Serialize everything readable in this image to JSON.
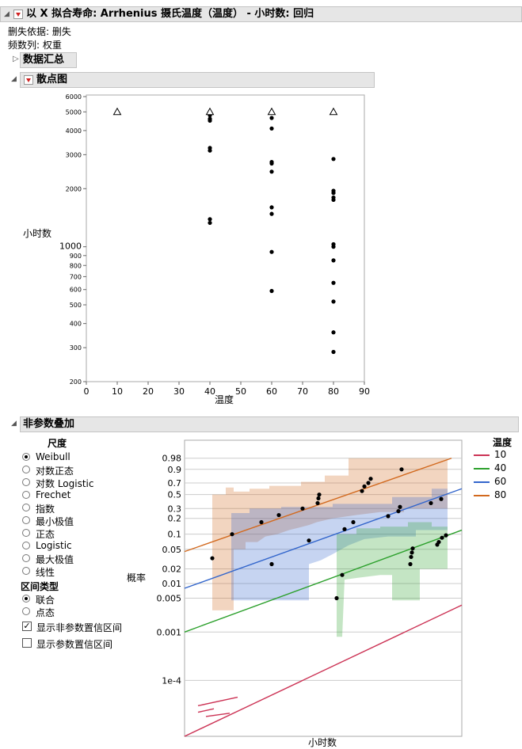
{
  "report": {
    "title": "以 X 拟合寿命: Arrhenius 摄氏温度（温度） - 小时数: 回归",
    "censor_label": "删失依据: 删失",
    "freq_label": "频数列: 权重"
  },
  "sections": {
    "summary_title": "数据汇总",
    "scatter_title": "散点图",
    "overlay_title": "非参数叠加"
  },
  "scale": {
    "heading": "尺度",
    "options": [
      "Weibull",
      "对数正态",
      "对数 Logistic",
      "Frechet",
      "指数",
      "最小极值",
      "正态",
      "Logistic",
      "最大极值",
      "线性"
    ],
    "selected": "Weibull"
  },
  "interval": {
    "heading": "区间类型",
    "options": [
      "联合",
      "点态"
    ],
    "selected": "联合"
  },
  "checkboxes": {
    "nonparam": {
      "label": "显示非参数置信区间",
      "checked": true
    },
    "param": {
      "label": "显示参数置信区间",
      "checked": false
    }
  },
  "legend": {
    "title": "温度",
    "items": [
      {
        "label": "10",
        "color": "#cc3355"
      },
      {
        "label": "40",
        "color": "#2ca02c"
      },
      {
        "label": "60",
        "color": "#3366cc"
      },
      {
        "label": "80",
        "color": "#d2691e"
      }
    ]
  },
  "chart_data": [
    {
      "type": "scatter",
      "xlabel": "温度",
      "ylabel": "小时数",
      "xlim": [
        0,
        90
      ],
      "x_ticks": [
        "0",
        "10",
        "20",
        "30",
        "40",
        "50",
        "60",
        "70",
        "80",
        "90"
      ],
      "y_log": true,
      "ylim": [
        200,
        6000
      ],
      "y_ticks": [
        "200",
        "300",
        "400",
        "500",
        "600",
        "700",
        "800",
        "900",
        "1000",
        "2000",
        "3000",
        "4000",
        "5000",
        "6000"
      ],
      "censored_points": [
        [
          10,
          5000
        ],
        [
          40,
          5000
        ],
        [
          60,
          5000
        ],
        [
          80,
          5000
        ]
      ],
      "points": [
        [
          40,
          4980
        ],
        [
          40,
          4900
        ],
        [
          40,
          4800
        ],
        [
          40,
          4600
        ],
        [
          40,
          4500
        ],
        [
          40,
          3250
        ],
        [
          40,
          3150
        ],
        [
          40,
          1390
        ],
        [
          40,
          1330
        ],
        [
          60,
          4650
        ],
        [
          60,
          4100
        ],
        [
          60,
          2750
        ],
        [
          60,
          2700
        ],
        [
          60,
          2450
        ],
        [
          60,
          1600
        ],
        [
          60,
          1480
        ],
        [
          60,
          940
        ],
        [
          60,
          590
        ],
        [
          80,
          2850
        ],
        [
          80,
          1950
        ],
        [
          80,
          1900
        ],
        [
          80,
          1800
        ],
        [
          80,
          1750
        ],
        [
          80,
          1030
        ],
        [
          80,
          1000
        ],
        [
          80,
          850
        ],
        [
          80,
          650
        ],
        [
          80,
          520
        ],
        [
          80,
          360
        ],
        [
          80,
          285
        ]
      ]
    },
    {
      "type": "line",
      "xlabel": "小时数",
      "ylabel": "概率",
      "y_ticks": [
        "1e-4",
        "0.001",
        "0.005",
        "0.01",
        "0.02",
        "0.05",
        "0.1",
        "0.2",
        "0.3",
        "0.5",
        "0.7",
        "0.9",
        "0.98"
      ],
      "series": [
        {
          "name": "10",
          "color": "#cc3355"
        },
        {
          "name": "40",
          "color": "#2ca02c"
        },
        {
          "name": "60",
          "color": "#3366cc"
        },
        {
          "name": "80",
          "color": "#d2691e"
        }
      ],
      "grid": true
    }
  ]
}
